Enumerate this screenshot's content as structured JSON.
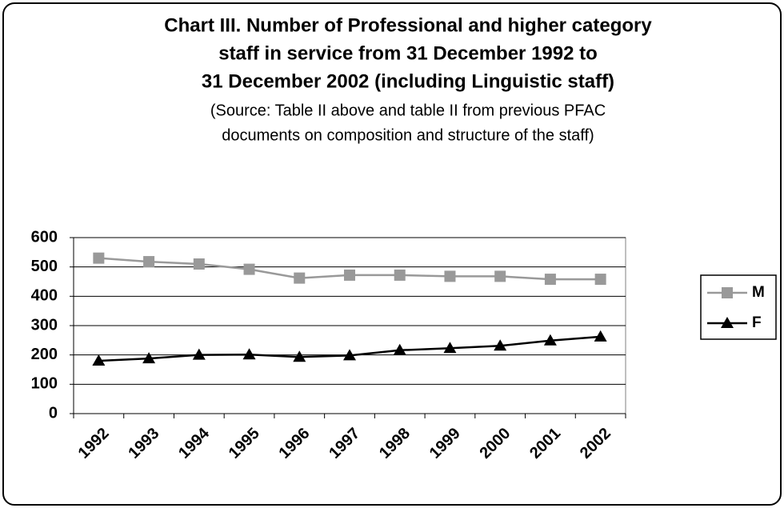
{
  "chart_data": {
    "type": "line",
    "title": [
      "Chart III. Number of Professional and higher category",
      "staff in service from 31 December 1992 to",
      "31 December 2002 (including Linguistic staff)"
    ],
    "subtitle": [
      "(Source:  Table II above and table II from previous PFAC",
      "documents on composition and structure of the staff)"
    ],
    "categories": [
      "1992",
      "1993",
      "1994",
      "1995",
      "1996",
      "1997",
      "1998",
      "1999",
      "2000",
      "2001",
      "2002"
    ],
    "series": [
      {
        "name": "M",
        "color": "#999999",
        "marker": "square",
        "values": [
          530,
          518,
          510,
          492,
          462,
          472,
          472,
          468,
          468,
          458,
          458
        ]
      },
      {
        "name": "F",
        "color": "#000000",
        "marker": "triangle",
        "values": [
          180,
          188,
          200,
          201,
          193,
          198,
          216,
          223,
          231,
          249,
          262
        ]
      }
    ],
    "ylim": [
      0,
      600
    ],
    "yticks": [
      0,
      100,
      200,
      300,
      400,
      500,
      600
    ],
    "grid": true,
    "legend": "right"
  }
}
